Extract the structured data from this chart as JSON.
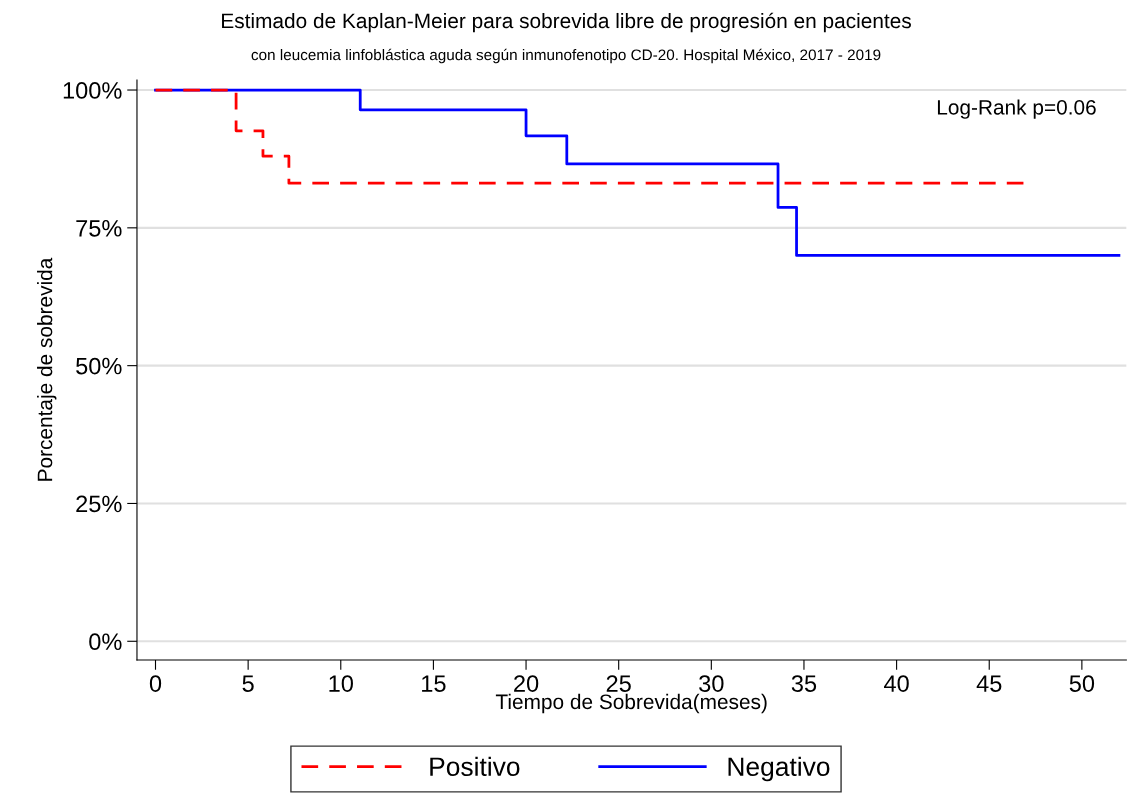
{
  "chart_data": {
    "type": "step",
    "title": "Estimado de Kaplan-Meier para sobrevida libre de progresión en pacientes",
    "subtitle": "con leucemia linfoblástica aguda según inmunofenotipo CD-20. Hospital México, 2017 - 2019",
    "xlabel": "Tiempo de Sobrevida(meses)",
    "ylabel": "Porcentaje de sobrevida",
    "series": [
      {
        "name": "Positivo",
        "color": "#ff0000",
        "line_style": "dashed",
        "x": [
          0,
          4.35,
          5.8,
          7.2,
          46.9
        ],
        "values": [
          100,
          92.6,
          88.0,
          83.1,
          83.1
        ]
      },
      {
        "name": "Negativo",
        "color": "#0000ff",
        "line_style": "solid",
        "x": [
          0,
          11.05,
          20,
          22.2,
          33.6,
          34.6,
          52
        ],
        "values": [
          100,
          96.4,
          91.7,
          86.6,
          78.7,
          70,
          70
        ]
      }
    ],
    "xlim": [
      -1,
      52.4
    ],
    "xticks": [
      0,
      5,
      10,
      15,
      20,
      25,
      30,
      35,
      40,
      45,
      50
    ],
    "ylim": [
      -3.4,
      101.8
    ],
    "yticks": [
      {
        "value": 0,
        "label": "0%"
      },
      {
        "value": 25,
        "label": "25%"
      },
      {
        "value": 50,
        "label": "50%"
      },
      {
        "value": 75,
        "label": "75%"
      },
      {
        "value": 100,
        "label": "100%"
      }
    ],
    "grid": "y",
    "legend": "bottom",
    "annotations": [
      "Log-Rank p=0.06"
    ]
  }
}
